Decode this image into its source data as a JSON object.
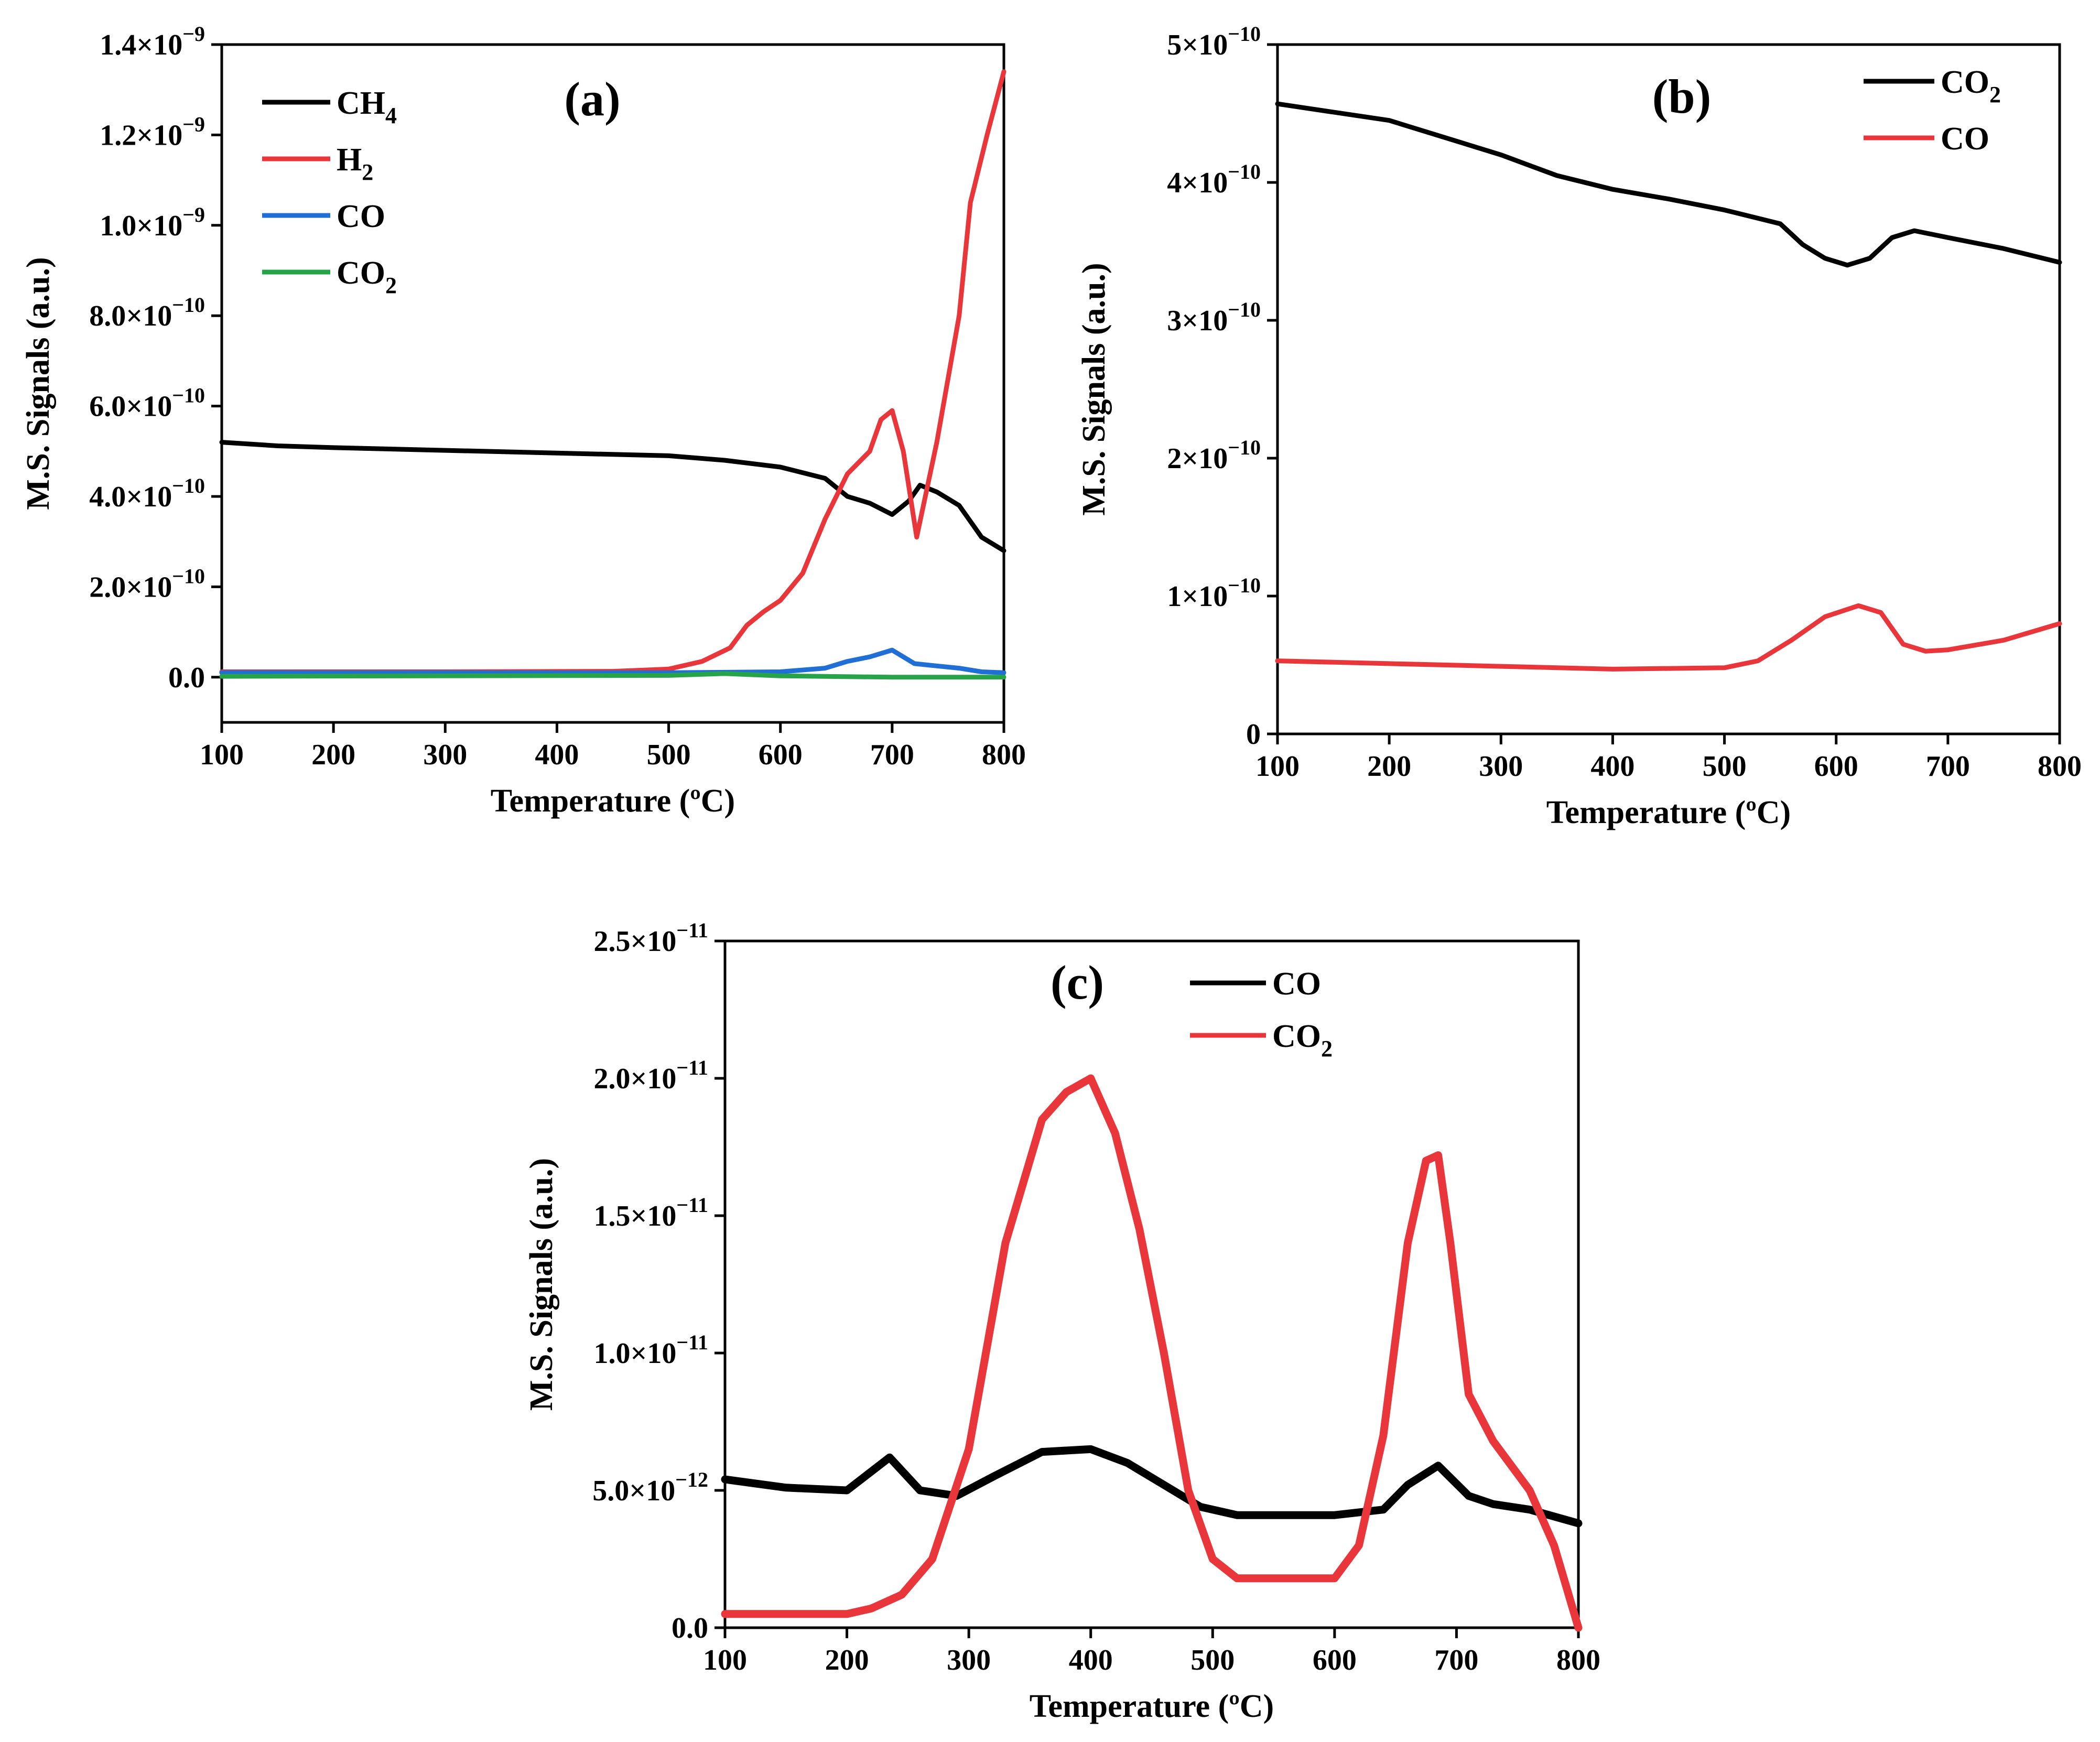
{
  "chart_data": [
    {
      "id": "a",
      "type": "line",
      "panel_label": "(a)",
      "xlabel": "Temperature (ºC)",
      "ylabel": "M.S. Signals (a.u.)",
      "xlim": [
        100,
        800
      ],
      "ylim": [
        -1e-10,
        1.4e-09
      ],
      "x_ticks": [
        100,
        200,
        300,
        400,
        500,
        600,
        700,
        800
      ],
      "y_ticks": [
        {
          "value": 1.4e-09,
          "mant": "1.4",
          "exp": "−9"
        },
        {
          "value": 1.2e-09,
          "mant": "1.2",
          "exp": "−9"
        },
        {
          "value": 1e-09,
          "mant": "1.0",
          "exp": "−9"
        },
        {
          "value": 8e-10,
          "mant": "8.0",
          "exp": "−10"
        },
        {
          "value": 6e-10,
          "mant": "6.0",
          "exp": "−10"
        },
        {
          "value": 4e-10,
          "mant": "4.0",
          "exp": "−10"
        },
        {
          "value": 2e-10,
          "mant": "2.0",
          "exp": "−10"
        },
        {
          "value": 0,
          "mant": "0.0",
          "exp": ""
        }
      ],
      "legend_position": "top-left",
      "series": [
        {
          "name": "CH4",
          "label_main": "CH",
          "label_sub": "4",
          "color": "#000000",
          "x": [
            100,
            150,
            200,
            300,
            400,
            500,
            550,
            600,
            640,
            660,
            680,
            700,
            715,
            725,
            740,
            760,
            780,
            800
          ],
          "y": [
            5.2e-10,
            5.12e-10,
            5.08e-10,
            5.02e-10,
            4.96e-10,
            4.9e-10,
            4.8e-10,
            4.65e-10,
            4.4e-10,
            4e-10,
            3.85e-10,
            3.6e-10,
            3.9e-10,
            4.25e-10,
            4.1e-10,
            3.8e-10,
            3.1e-10,
            2.8e-10
          ]
        },
        {
          "name": "H2",
          "label_main": "H",
          "label_sub": "2",
          "color": "#e8363a",
          "x": [
            100,
            300,
            450,
            500,
            530,
            555,
            570,
            585,
            600,
            620,
            640,
            660,
            680,
            690,
            700,
            710,
            722,
            740,
            760,
            770,
            785,
            800
          ],
          "y": [
            1.2e-11,
            1.2e-11,
            1.3e-11,
            1.8e-11,
            3.5e-11,
            6.5e-11,
            1.15e-10,
            1.45e-10,
            1.7e-10,
            2.3e-10,
            3.5e-10,
            4.5e-10,
            5e-10,
            5.7e-10,
            5.9e-10,
            5e-10,
            3.1e-10,
            5.2e-10,
            8e-10,
            1.05e-09,
            1.2e-09,
            1.34e-09
          ]
        },
        {
          "name": "CO",
          "label_main": "CO",
          "label_sub": "",
          "color": "#1f6fd6",
          "x": [
            100,
            500,
            600,
            640,
            660,
            680,
            700,
            720,
            740,
            760,
            780,
            800
          ],
          "y": [
            1e-11,
            1e-11,
            1.2e-11,
            2e-11,
            3.5e-11,
            4.5e-11,
            6e-11,
            3e-11,
            2.5e-11,
            2e-11,
            1.2e-11,
            1e-11
          ]
        },
        {
          "name": "CO2",
          "label_main": "CO",
          "label_sub": "2",
          "color": "#27a34a",
          "x": [
            100,
            500,
            550,
            600,
            700,
            800
          ],
          "y": [
            2e-12,
            4e-12,
            8e-12,
            3e-12,
            0,
            0
          ]
        }
      ]
    },
    {
      "id": "b",
      "type": "line",
      "panel_label": "(b)",
      "xlabel": "Temperature (ºC)",
      "ylabel": "M.S. Signals (a.u.)",
      "xlim": [
        100,
        800
      ],
      "ylim": [
        0,
        5e-10
      ],
      "x_ticks": [
        100,
        200,
        300,
        400,
        500,
        600,
        700,
        800
      ],
      "y_ticks": [
        {
          "value": 5e-10,
          "mant": "5",
          "exp": "−10"
        },
        {
          "value": 4e-10,
          "mant": "4",
          "exp": "−10"
        },
        {
          "value": 3e-10,
          "mant": "3",
          "exp": "−10"
        },
        {
          "value": 2e-10,
          "mant": "2",
          "exp": "−10"
        },
        {
          "value": 1e-10,
          "mant": "1",
          "exp": "−10"
        },
        {
          "value": 0,
          "mant": "0",
          "exp": ""
        }
      ],
      "legend_position": "top-right",
      "series": [
        {
          "name": "CO2",
          "label_main": "CO",
          "label_sub": "2",
          "color": "#000000",
          "x": [
            100,
            200,
            300,
            350,
            400,
            450,
            500,
            550,
            570,
            590,
            610,
            630,
            650,
            670,
            700,
            750,
            800
          ],
          "y": [
            4.57e-10,
            4.45e-10,
            4.2e-10,
            4.05e-10,
            3.95e-10,
            3.88e-10,
            3.8e-10,
            3.7e-10,
            3.55e-10,
            3.45e-10,
            3.4e-10,
            3.45e-10,
            3.6e-10,
            3.65e-10,
            3.6e-10,
            3.52e-10,
            3.42e-10
          ]
        },
        {
          "name": "CO",
          "label_main": "CO",
          "label_sub": "",
          "color": "#e8363a",
          "x": [
            100,
            200,
            300,
            400,
            500,
            530,
            560,
            590,
            620,
            640,
            660,
            680,
            700,
            750,
            800
          ],
          "y": [
            5.3e-11,
            5.1e-11,
            4.9e-11,
            4.7e-11,
            4.8e-11,
            5.3e-11,
            6.8e-11,
            8.5e-11,
            9.3e-11,
            8.8e-11,
            6.5e-11,
            6e-11,
            6.1e-11,
            6.8e-11,
            8e-11
          ]
        }
      ]
    },
    {
      "id": "c",
      "type": "line",
      "panel_label": "(c)",
      "xlabel": "Temperature (ºC)",
      "ylabel": "M.S. Signals (a.u.)",
      "xlim": [
        100,
        800
      ],
      "ylim": [
        0,
        2.5e-11
      ],
      "x_ticks": [
        100,
        200,
        300,
        400,
        500,
        600,
        700,
        800
      ],
      "y_ticks": [
        {
          "value": 2.5e-11,
          "mant": "2.5",
          "exp": "−11"
        },
        {
          "value": 2e-11,
          "mant": "2.0",
          "exp": "−11"
        },
        {
          "value": 1.5e-11,
          "mant": "1.5",
          "exp": "−11"
        },
        {
          "value": 1e-11,
          "mant": "1.0",
          "exp": "−11"
        },
        {
          "value": 5e-12,
          "mant": "5.0",
          "exp": "−12"
        },
        {
          "value": 0,
          "mant": "0.0",
          "exp": ""
        }
      ],
      "legend_position": "top-center",
      "series": [
        {
          "name": "CO",
          "label_main": "CO",
          "label_sub": "",
          "color": "#000000",
          "x": [
            100,
            150,
            200,
            235,
            260,
            290,
            320,
            360,
            400,
            430,
            460,
            490,
            520,
            600,
            640,
            660,
            685,
            710,
            730,
            760,
            800
          ],
          "y": [
            5.4e-12,
            5.1e-12,
            5e-12,
            6.2e-12,
            5e-12,
            4.8e-12,
            5.5e-12,
            6.4e-12,
            6.5e-12,
            6e-12,
            5.2e-12,
            4.4e-12,
            4.1e-12,
            4.1e-12,
            4.3e-12,
            5.2e-12,
            5.9e-12,
            4.8e-12,
            4.5e-12,
            4.3e-12,
            3.8e-12
          ]
        },
        {
          "name": "CO2",
          "label_main": "CO",
          "label_sub": "2",
          "color": "#e8363a",
          "x": [
            100,
            150,
            200,
            220,
            245,
            270,
            300,
            330,
            360,
            380,
            400,
            420,
            440,
            460,
            480,
            500,
            520,
            600,
            620,
            640,
            660,
            675,
            685,
            695,
            710,
            730,
            760,
            780,
            800
          ],
          "y": [
            5e-13,
            5e-13,
            5e-13,
            7e-13,
            1.2e-12,
            2.5e-12,
            6.5e-12,
            1.4e-11,
            1.85e-11,
            1.95e-11,
            2e-11,
            1.8e-11,
            1.45e-11,
            1e-11,
            5e-12,
            2.5e-12,
            1.8e-12,
            1.8e-12,
            3e-12,
            7e-12,
            1.4e-11,
            1.7e-11,
            1.72e-11,
            1.4e-11,
            8.5e-12,
            6.8e-12,
            5e-12,
            3e-12,
            0
          ]
        }
      ]
    }
  ]
}
